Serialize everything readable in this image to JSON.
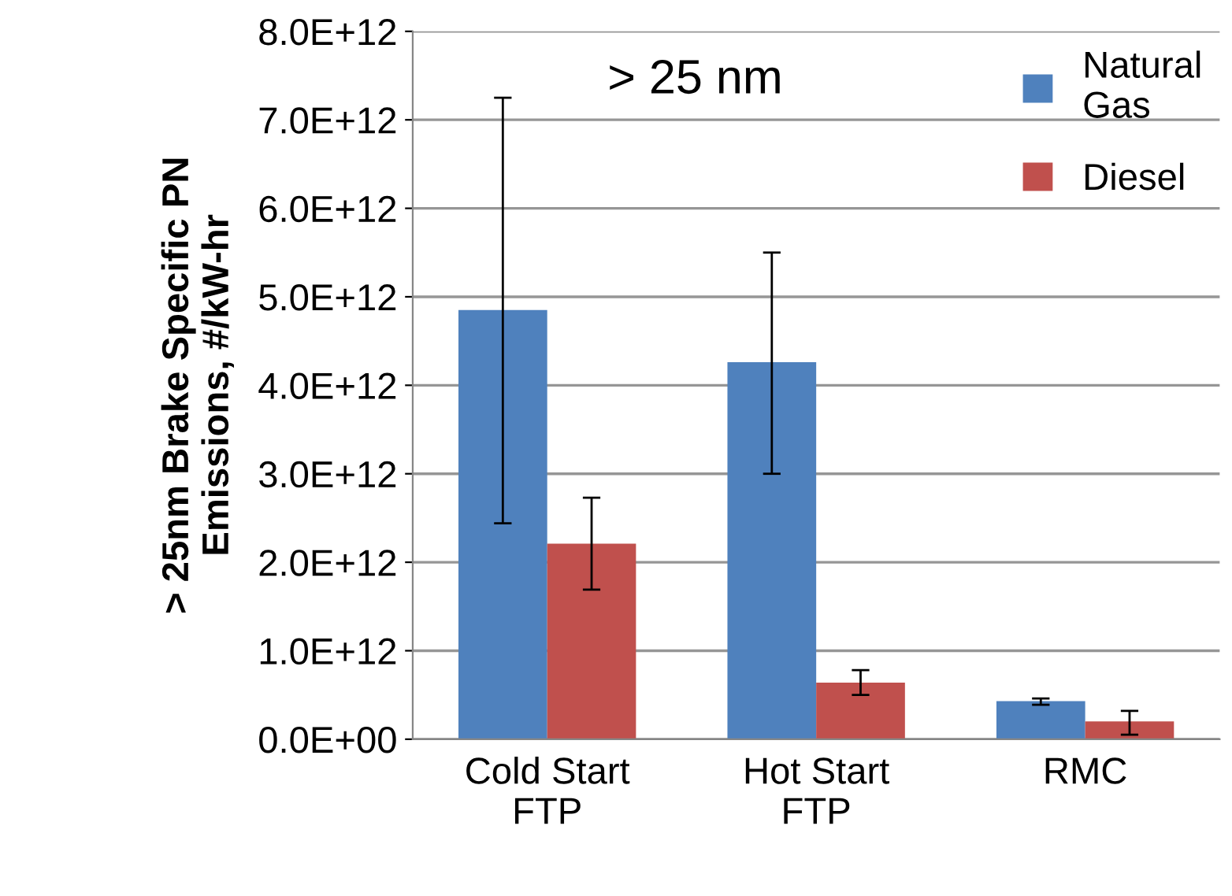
{
  "chart_data": {
    "type": "bar",
    "ylabel": "> 25nm Brake Specific PN\nEmissions, #/kW-hr",
    "categories": [
      "Cold Start\nFTP",
      "Hot Start\nFTP",
      "RMC"
    ],
    "series": [
      {
        "name": "Natural\nGas",
        "color": "#4f81bd",
        "values": [
          4850000000000.0,
          4260000000000.0,
          430000000000.0
        ],
        "errors": [
          [
            2440000000000.0,
            7250000000000.0
          ],
          [
            3000000000000.0,
            5500000000000.0
          ],
          [
            390000000000.0,
            460000000000.0
          ]
        ]
      },
      {
        "name": "Diesel",
        "color": "#c0504d",
        "values": [
          2210000000000.0,
          640000000000.0,
          200000000000.0
        ],
        "errors": [
          [
            1690000000000.0,
            2730000000000.0
          ],
          [
            500000000000.0,
            780000000000.0
          ],
          [
            50000000000.0,
            320000000000.0
          ]
        ]
      }
    ],
    "ylim": [
      0,
      8000000000000.0
    ],
    "yticks": [
      {
        "value": 0,
        "label": "0.0E+00"
      },
      {
        "value": 1000000000000.0,
        "label": "1.0E+12"
      },
      {
        "value": 2000000000000.0,
        "label": "2.0E+12"
      },
      {
        "value": 3000000000000.0,
        "label": "3.0E+12"
      },
      {
        "value": 4000000000000.0,
        "label": "4.0E+12"
      },
      {
        "value": 5000000000000.0,
        "label": "5.0E+12"
      },
      {
        "value": 6000000000000.0,
        "label": "6.0E+12"
      },
      {
        "value": 7000000000000.0,
        "label": "7.0E+12"
      },
      {
        "value": 8000000000000.0,
        "label": "8.0E+12"
      }
    ],
    "annotations": [
      "> 25 nm"
    ],
    "legend": "top right",
    "grid": "y"
  }
}
